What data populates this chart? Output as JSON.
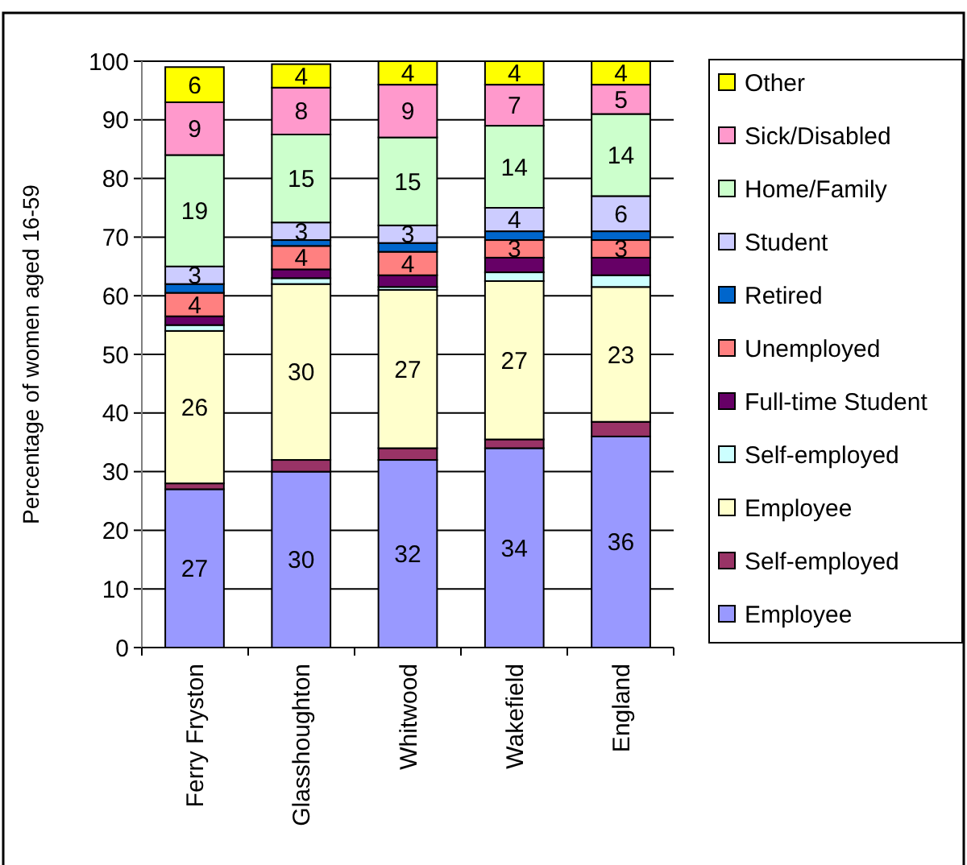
{
  "chart_data": {
    "type": "bar",
    "stacked": true,
    "ylabel": "Percentage of women aged 16-59",
    "categories": [
      "Ferry Fryston",
      "Glasshoughton",
      "Whitwood",
      "Wakefield",
      "England"
    ],
    "ylim": [
      0,
      100
    ],
    "yticks": [
      0,
      10,
      20,
      30,
      40,
      50,
      60,
      70,
      80,
      90,
      100
    ],
    "grid": "y",
    "legend": "right",
    "series": [
      {
        "name": "Employee",
        "color": "#9999ff",
        "values": [
          27,
          30,
          32,
          34,
          36
        ],
        "value_labels": [
          "27",
          "30",
          "32",
          "34",
          "36"
        ]
      },
      {
        "name": "Self-employed",
        "color": "#993366",
        "values": [
          1,
          2,
          2,
          1.5,
          2.5
        ]
      },
      {
        "name": "Employee",
        "color": "#ffffcc",
        "values": [
          26,
          30,
          27,
          27,
          23
        ],
        "value_labels": [
          "26",
          "30",
          "27",
          "27",
          "23"
        ]
      },
      {
        "name": "Self-employed",
        "color": "#ccffff",
        "values": [
          1,
          1,
          0.5,
          1.5,
          2
        ]
      },
      {
        "name": "Full-time Student",
        "color": "#660066",
        "values": [
          1.5,
          1.5,
          2,
          2.5,
          3
        ]
      },
      {
        "name": "Unemployed",
        "color": "#ff8080",
        "values": [
          4,
          4,
          4,
          3,
          3
        ],
        "value_labels": [
          "4",
          "4",
          "4",
          "3",
          "3"
        ]
      },
      {
        "name": "Retired",
        "color": "#0066cc",
        "values": [
          1.5,
          1,
          1.5,
          1.5,
          1.5
        ]
      },
      {
        "name": "Student",
        "color": "#ccccff",
        "values": [
          3,
          3,
          3,
          4,
          6
        ],
        "value_labels": [
          "3",
          "3",
          "3",
          "4",
          "6"
        ]
      },
      {
        "name": "Home/Family",
        "color": "#ccffcc",
        "values": [
          19,
          15,
          15,
          14,
          14
        ],
        "value_labels": [
          "19",
          "15",
          "15",
          "14",
          "14"
        ]
      },
      {
        "name": "Sick/Disabled",
        "color": "#ff99cc",
        "values": [
          9,
          8,
          9,
          7,
          5
        ],
        "value_labels": [
          "9",
          "8",
          "9",
          "7",
          "5"
        ]
      },
      {
        "name": "Other",
        "color": "#ffff00",
        "values": [
          6,
          4,
          4,
          4,
          4
        ],
        "value_labels": [
          "6",
          "4",
          "4",
          "4",
          "4"
        ]
      }
    ]
  }
}
